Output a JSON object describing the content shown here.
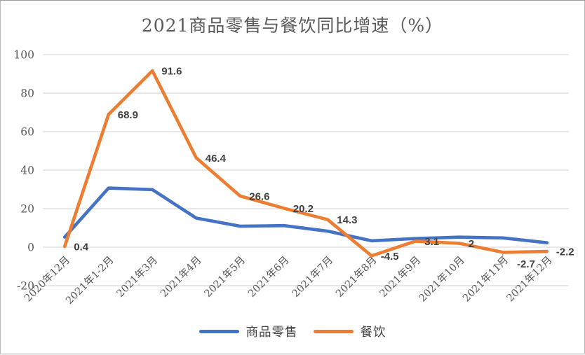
{
  "chart_data": {
    "type": "line",
    "title": "2021商品零售与餐饮同比增速（%）",
    "categories": [
      "2020年12月",
      "2021年1-2月",
      "2021年3月",
      "2021年4月",
      "2021年5月",
      "2021年6月",
      "2021年7月",
      "2021年8月",
      "2021年9月",
      "2021年10月",
      "2021年11月",
      "2021年12月"
    ],
    "series": [
      {
        "name": "商品零售",
        "color": "#4472C4",
        "values": [
          5.2,
          30.7,
          29.9,
          15.1,
          10.9,
          11.2,
          8.3,
          3.3,
          4.5,
          5.2,
          4.8,
          2.3
        ]
      },
      {
        "name": "餐饮",
        "color": "#ED7D31",
        "values": [
          0.4,
          68.9,
          91.6,
          46.4,
          26.6,
          20.2,
          14.3,
          -4.5,
          3.1,
          2,
          -2.7,
          -2.2
        ]
      }
    ],
    "data_labels": [
      "0.4",
      "68.9",
      "91.6",
      "46.4",
      "26.6",
      "20.2",
      "14.3",
      "-4.5",
      "3.1",
      "2",
      "-2.7",
      "-2.2"
    ],
    "data_labels_series": "餐饮",
    "yticks": [
      -20,
      0,
      20,
      40,
      60,
      80,
      100
    ],
    "ylim": [
      -20,
      100
    ],
    "grid": "horizontal",
    "legend_position": "bottom",
    "gridline_color": "#D9D9D9",
    "axis_label_color": "#595959",
    "data_label_color": "#404040",
    "leader_line_color": "#A6A6A6"
  }
}
